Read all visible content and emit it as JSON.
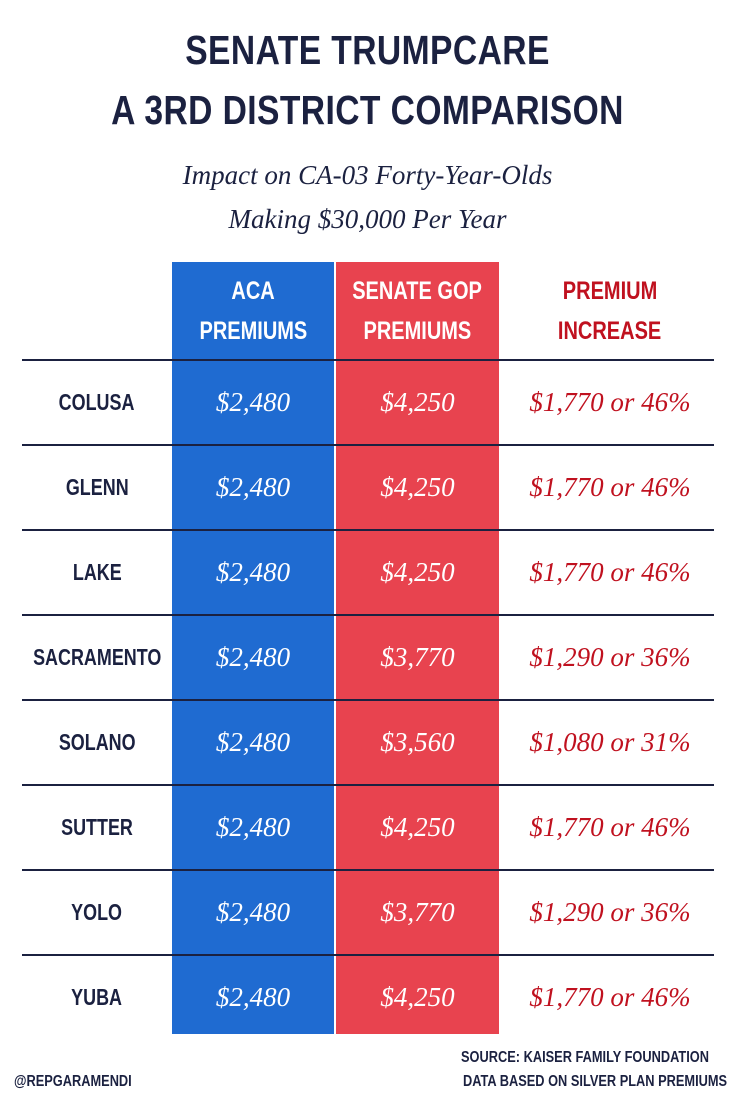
{
  "title": {
    "line1": "SENATE TRUMPCARE",
    "line2": "A 3RD DISTRICT COMPARISON"
  },
  "subtitle": {
    "line1": "Impact on CA-03 Forty-Year-Olds",
    "line2": "Making $30,000 Per Year"
  },
  "colors": {
    "navy": "#1b2140",
    "aca_blue": "#1f6bd1",
    "gop_red": "#e8434f",
    "increase_red": "#c0111f"
  },
  "table": {
    "headers": {
      "aca": [
        "ACA",
        "PREMIUMS"
      ],
      "gop": [
        "SENATE GOP",
        "PREMIUMS"
      ],
      "increase": [
        "PREMIUM",
        "INCREASE"
      ]
    },
    "rows": [
      {
        "county": "COLUSA",
        "aca": "$2,480",
        "gop": "$4,250",
        "increase": "$1,770 or 46%"
      },
      {
        "county": "GLENN",
        "aca": "$2,480",
        "gop": "$4,250",
        "increase": "$1,770 or 46%"
      },
      {
        "county": "LAKE",
        "aca": "$2,480",
        "gop": "$4,250",
        "increase": "$1,770 or 46%"
      },
      {
        "county": "SACRAMENTO",
        "aca": "$2,480",
        "gop": "$3,770",
        "increase": "$1,290 or 36%"
      },
      {
        "county": "SOLANO",
        "aca": "$2,480",
        "gop": "$3,560",
        "increase": "$1,080 or 31%"
      },
      {
        "county": "SUTTER",
        "aca": "$2,480",
        "gop": "$4,250",
        "increase": "$1,770 or 46%"
      },
      {
        "county": "YOLO",
        "aca": "$2,480",
        "gop": "$3,770",
        "increase": "$1,290 or 36%"
      },
      {
        "county": "YUBA",
        "aca": "$2,480",
        "gop": "$4,250",
        "increase": "$1,770 or 46%"
      }
    ]
  },
  "footer": {
    "handle": "@REPGARAMENDI",
    "source_line1": "SOURCE: KAISER FAMILY FOUNDATION",
    "source_line2": "DATA BASED ON SILVER PLAN PREMIUMS"
  }
}
